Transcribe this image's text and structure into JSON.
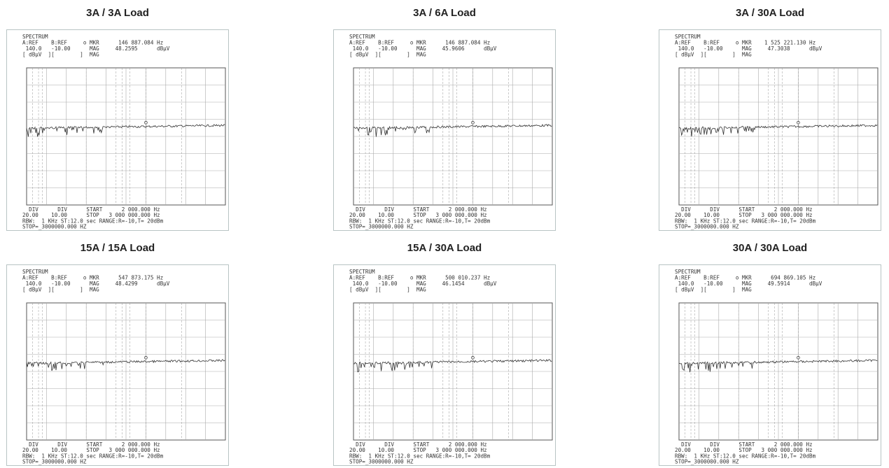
{
  "panels": [
    {
      "title": "3A / 3A Load",
      "header": [
        "SPECTRUM",
        "A:REF    B:REF     o MKR      146 887.084 Hz",
        " 140.0   -10.00      MAG     48.2595      dBµV",
        "[ dBµV  ][        ]  MAG"
      ],
      "footer": [
        "  DIV      DIV      START      2 000.000 Hz",
        "20.00    10.00      STOP   3 000 000.000 Hz",
        "RBW:  1 KHz ST:12.0 sec RANGE:R=-10,T= 20dBm",
        "STOP=_3000000.000 HZ"
      ]
    },
    {
      "title": "3A / 6A Load",
      "header": [
        "SPECTRUM",
        "A:REF    B:REF     o MKR      146 887.084 Hz",
        " 140.0   -10.00      MAG     45.9606      dBµV",
        "[ dBµV  ][        ]  MAG"
      ],
      "footer": [
        "  DIV      DIV      START      2 000.000 Hz",
        "20.00    10.00      STOP   3 000 000.000 Hz",
        "RBW:  1 KHz ST:12.0 sec RANGE:R=-10,T= 20dBm",
        "STOP=_3000000.000 HZ"
      ]
    },
    {
      "title": "3A / 30A Load",
      "header": [
        "SPECTRUM",
        "A:REF    B:REF     o MKR    1 525 221.130 Hz",
        " 140.0   -10.00      MAG     47.3038      dBµV",
        "[ dBµV  ][        ]  MAG"
      ],
      "footer": [
        "  DIV      DIV      START      2 000.000 Hz",
        "20.00    10.00      STOP   3 000 000.000 Hz",
        "RBW:  1 KHz ST:12.0 sec RANGE:R=-10,T= 20dBm",
        "STOP=_3000000.000 HZ"
      ]
    },
    {
      "title": "15A / 15A Load",
      "header": [
        "SPECTRUM",
        "A:REF    B:REF     o MKR      547 873.175 Hz",
        " 140.0   -10.00      MAG     48.4299      dBµV",
        "[ dBµV  ][        ]  MAG"
      ],
      "footer": [
        "  DIV      DIV      START      2 000.000 Hz",
        "20.00    10.00      STOP   3 000 000.000 Hz",
        "RBW:  1 KHz ST:12.0 sec RANGE:R=-10,T= 20dBm",
        "STOP=_3000000.000 HZ"
      ]
    },
    {
      "title": "15A / 30A Load",
      "header": [
        "SPECTRUM",
        "A:REF    B:REF     o MKR      500 010.237 Hz",
        " 140.0   -10.00      MAG     46.1454      dBµV",
        "[ dBµV  ][        ]  MAG"
      ],
      "footer": [
        "  DIV      DIV      START      2 000.000 Hz",
        "20.00    10.00      STOP   3 000 000.000 Hz",
        "RBW:  1 KHz ST:12.0 sec RANGE:R=-10,T= 20dBm",
        "STOP=_3000000.000 HZ"
      ]
    },
    {
      "title": "30A / 30A Load",
      "header": [
        "SPECTRUM",
        "A:REF    B:REF     o MKR      694 869.105 Hz",
        " 140.0   -10.00      MAG     49.5914      dBµV",
        "[ dBµV  ][        ]  MAG"
      ],
      "footer": [
        "  DIV      DIV      START      2 000.000 Hz",
        "20.00    10.00      STOP   3 000 000.000 Hz",
        "RBW:  1 KHz ST:12.0 sec RANGE:R=-10,T= 20dBm",
        "STOP=_3000000.000 HZ"
      ]
    }
  ]
}
